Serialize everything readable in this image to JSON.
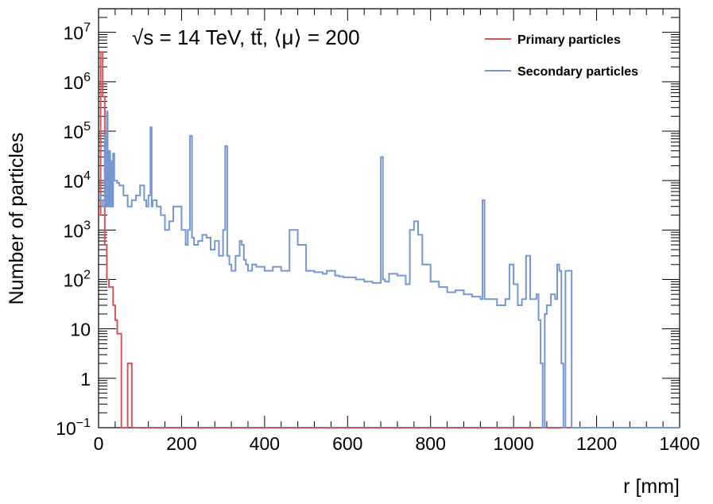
{
  "chart_data": {
    "type": "line",
    "annotation": "√s = 14 TeV, tt̄, ⟨μ⟩ = 200",
    "xlabel": "r [mm]",
    "ylabel": "Number of particles",
    "xlim": [
      0,
      1400
    ],
    "ylim": [
      0.1,
      30000000
    ],
    "yscale": "log",
    "x_ticks": [
      "0",
      "200",
      "400",
      "600",
      "800",
      "1000",
      "1200",
      "1400"
    ],
    "y_ticks": [
      {
        "value": 0.1,
        "label": "10",
        "exp": "−1"
      },
      {
        "value": 1,
        "label": "1",
        "exp": ""
      },
      {
        "value": 10,
        "label": "10",
        "exp": ""
      },
      {
        "value": 100,
        "label": "10",
        "exp": "2"
      },
      {
        "value": 1000,
        "label": "10",
        "exp": "3"
      },
      {
        "value": 10000,
        "label": "10",
        "exp": "4"
      },
      {
        "value": 100000,
        "label": "10",
        "exp": "5"
      },
      {
        "value": 1000000,
        "label": "10",
        "exp": "6"
      },
      {
        "value": 10000000,
        "label": "10",
        "exp": "7"
      }
    ],
    "legend_position": "top-right",
    "grid": false,
    "series": [
      {
        "name": "Primary particles",
        "color": "#d2555a",
        "x": [
          0,
          5,
          10,
          15,
          20,
          25,
          30,
          35,
          40,
          45,
          50,
          55,
          60,
          65,
          70,
          75,
          80,
          1400
        ],
        "y": [
          2000,
          4000000,
          500000,
          500,
          100,
          70,
          70,
          30,
          15,
          8,
          8,
          0.1,
          0.1,
          0.1,
          2,
          2,
          0.1,
          0.1
        ]
      },
      {
        "name": "Secondary particles",
        "color": "#7597d1",
        "x": [
          0,
          5,
          10,
          15,
          18,
          20,
          22,
          25,
          28,
          30,
          33,
          35,
          38,
          40,
          45,
          50,
          60,
          70,
          80,
          90,
          100,
          110,
          115,
          120,
          125,
          128,
          130,
          140,
          150,
          160,
          170,
          180,
          190,
          200,
          210,
          215,
          220,
          225,
          230,
          240,
          250,
          260,
          270,
          280,
          290,
          300,
          305,
          310,
          315,
          320,
          330,
          340,
          345,
          350,
          355,
          360,
          370,
          380,
          400,
          420,
          440,
          460,
          480,
          500,
          520,
          540,
          550,
          560,
          570,
          580,
          590,
          600,
          620,
          640,
          660,
          680,
          685,
          690,
          700,
          720,
          740,
          750,
          760,
          770,
          780,
          800,
          820,
          840,
          860,
          880,
          900,
          920,
          925,
          930,
          940,
          960,
          980,
          990,
          1000,
          1010,
          1020,
          1030,
          1040,
          1050,
          1055,
          1060,
          1065,
          1070,
          1075,
          1080,
          1090,
          1100,
          1105,
          1110,
          1115,
          1120,
          1125,
          1130,
          1135,
          1140,
          1145,
          1150,
          1200,
          1400
        ],
        "y": [
          5000,
          4000,
          3000,
          80000,
          3000,
          250000,
          3000,
          40000,
          3000,
          25000,
          3000,
          35000,
          10000,
          10000,
          9000,
          8000,
          5000,
          3000,
          4000,
          5000,
          8000,
          4000,
          3000,
          5000,
          120000,
          3000,
          4000,
          3000,
          2000,
          1000,
          1500,
          3000,
          3000,
          1000,
          500,
          1000,
          80000,
          700,
          500,
          600,
          800,
          700,
          400,
          600,
          300,
          1000,
          50000,
          300,
          200,
          150,
          300,
          600,
          500,
          250,
          200,
          150,
          200,
          180,
          150,
          180,
          150,
          1000,
          500,
          150,
          140,
          130,
          150,
          150,
          120,
          115,
          110,
          110,
          100,
          90,
          85,
          30000,
          100,
          90,
          130,
          120,
          80,
          1000,
          1500,
          800,
          200,
          90,
          70,
          55,
          60,
          50,
          45,
          40,
          4000,
          40,
          40,
          30,
          40,
          200,
          80,
          30,
          40,
          300,
          40,
          40,
          50,
          15,
          2,
          0.1,
          20,
          30,
          50,
          40,
          200,
          150,
          2,
          0.1,
          150,
          150,
          150,
          0.1,
          0.1,
          0.1,
          0.1,
          0.1
        ]
      }
    ]
  }
}
